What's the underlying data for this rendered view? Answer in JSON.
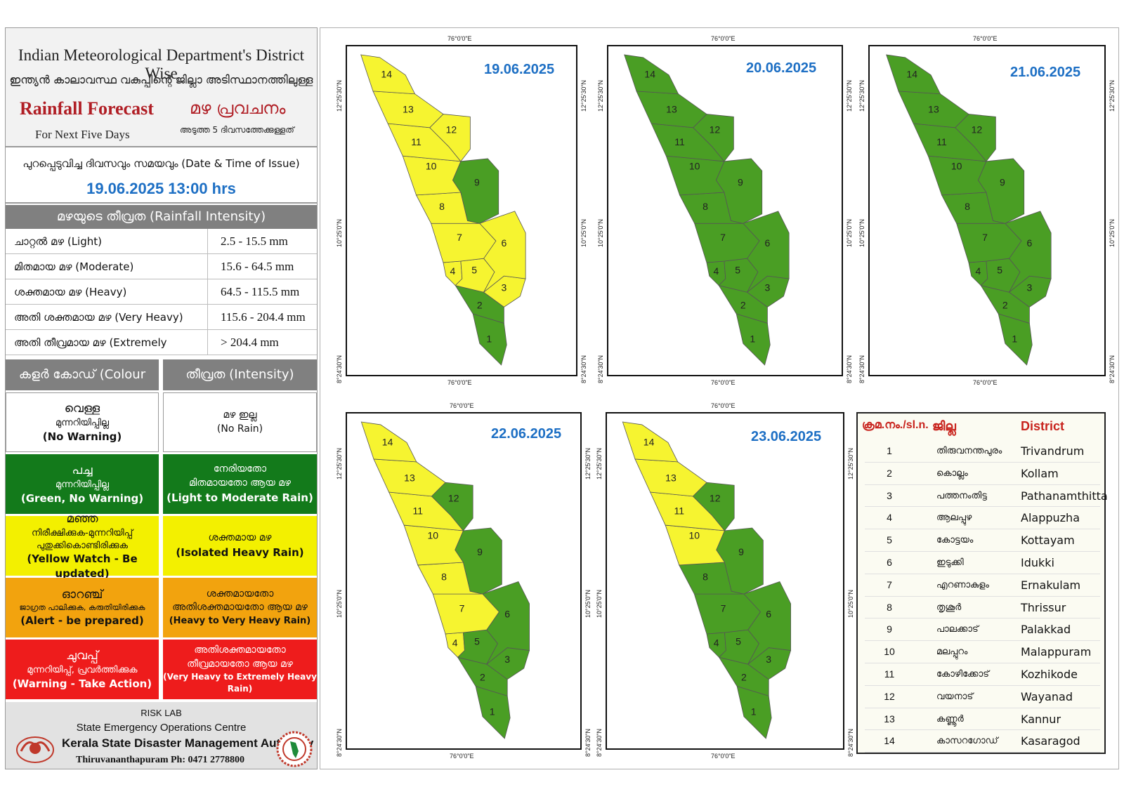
{
  "header": {
    "title_en": "Indian Meteorological Department's District Wise",
    "title_ml": "ഇന്ത്യൻ കാലാവസ്ഥ വകുപ്പിന്റെ ജില്ലാ അടിസ്ഥാനത്തിലുള്ള",
    "forecast_en": "Rainfall Forecast",
    "forecast_ml": "മഴ പ്രവചനം",
    "next_en": "For Next Five Days",
    "next_ml": "അടുത്ത 5 ദിവസത്തേക്കുള്ളത്"
  },
  "issue": {
    "label": "പുറപ്പെടുവിച്ച ദിവസവും സമയവും (Date & Time of Issue)",
    "datetime": "19.06.2025 13:00 hrs"
  },
  "intensity": {
    "header": "മഴയുടെ തീവ്രത (Rainfall Intensity)",
    "rows": [
      {
        "label": "ചാറ്റൽ മഴ (Light)",
        "range": "2.5 - 15.5 mm"
      },
      {
        "label": "മിതമായ മഴ (Moderate)",
        "range": "15.6 - 64.5 mm"
      },
      {
        "label": "ശക്തമായ മഴ (Heavy)",
        "range": "64.5 - 115.5 mm"
      },
      {
        "label": "അതി ശക്തമായ മഴ (Very Heavy)",
        "range": "115.6 - 204.4 mm"
      },
      {
        "label": "അതി തീവ്രമായ മഴ (Extremely Heavy)",
        "range": "> 204.4 mm"
      }
    ]
  },
  "colour_code": {
    "header_code": "കളർ കോഡ് (Colour Code)",
    "header_intensity": "തീവ്രത (Intensity)",
    "rows": [
      {
        "c1": "വെള്ള",
        "c2": "മുന്നറിയിപ്പില്ല",
        "c3": "(No Warning)",
        "i1": "മഴ ഇല്ല",
        "i2": "(No Rain)",
        "color": "#ffffff"
      },
      {
        "c1": "പച്ച",
        "c2": "മുന്നറിയിപ്പില്ല",
        "c3": "(Green, No Warning)",
        "i1": "നേരിയതോ",
        "i2": "മിതമായതോ ആയ മഴ",
        "i3": "(Light to Moderate Rain)",
        "color": "#137a1b"
      },
      {
        "c1": "മഞ്ഞ",
        "c2": "നിരീക്ഷിക്കുക-മുന്നറിയിപ്പ്",
        "c3": "പുതുക്കികൊണ്ടിരിക്കുക",
        "c4": "(Yellow Watch - Be updated)",
        "i1": "ശക്തമായ മഴ",
        "i2": "(Isolated Heavy Rain)",
        "color": "#f3f000"
      },
      {
        "c1": "ഓറഞ്ച്",
        "c2": "ജാഗ്രത പാലിക്കുക, കരുതിയിരിക്കുക",
        "c3": "(Alert - be prepared)",
        "i1": "ശക്തമായതോ",
        "i2": "അതിശക്തമായതോ ആയ മഴ",
        "i3": "(Heavy to Very Heavy Rain)",
        "color": "#f2a30e"
      },
      {
        "c1": "ചുവപ്പ്",
        "c2": "മുന്നറിയിപ്പ്, പ്രവർത്തിക്കുക",
        "c3": "(Warning - Take Action)",
        "i1": "അതിശക്തമായതോ",
        "i2": "തീവ്രമായതോ ആയ മഴ",
        "i3": "(Very Heavy to Extremely Heavy Rain)",
        "color": "#ee1c1c"
      }
    ]
  },
  "footer": {
    "risk": "RISK LAB",
    "seoc": "State Emergency Operations Centre",
    "ksdma": "Kerala State Disaster Management Authority",
    "phone": "Thiruvananthapuram Ph: 0471 2778800"
  },
  "coords": {
    "top": "76°0'0\"E",
    "lat1": "12°25'30\"N",
    "lat2": "10°25'0\"N",
    "lat3": "8°24'30\"N"
  },
  "colors": {
    "green": "#4a9e24",
    "yellow": "#f6f430",
    "date_blue": "#1d6fc4"
  },
  "maps": [
    {
      "date": "19.06.2025",
      "colors": [
        "green",
        "green",
        "yellow",
        "yellow",
        "yellow",
        "yellow",
        "yellow",
        "yellow",
        "green",
        "yellow",
        "yellow",
        "yellow",
        "yellow",
        "yellow"
      ]
    },
    {
      "date": "20.06.2025",
      "colors": [
        "green",
        "green",
        "green",
        "green",
        "green",
        "green",
        "green",
        "green",
        "green",
        "green",
        "green",
        "green",
        "green",
        "green"
      ]
    },
    {
      "date": "21.06.2025",
      "colors": [
        "green",
        "green",
        "green",
        "green",
        "green",
        "green",
        "green",
        "green",
        "green",
        "green",
        "green",
        "green",
        "green",
        "green"
      ]
    },
    {
      "date": "22.06.2025",
      "colors": [
        "green",
        "green",
        "green",
        "yellow",
        "green",
        "green",
        "yellow",
        "yellow",
        "green",
        "yellow",
        "yellow",
        "green",
        "yellow",
        "yellow"
      ]
    },
    {
      "date": "23.06.2025",
      "colors": [
        "green",
        "green",
        "green",
        "green",
        "green",
        "green",
        "green",
        "green",
        "green",
        "yellow",
        "yellow",
        "green",
        "yellow",
        "yellow"
      ]
    }
  ],
  "districts": {
    "h_sl": "ക്രമ.നം./sl.n.",
    "h_ml": "ജില്ല",
    "h_en": "District",
    "rows": [
      {
        "n": "1",
        "ml": "തിരുവനന്തപുരം",
        "en": "Trivandrum"
      },
      {
        "n": "2",
        "ml": "കൊല്ലം",
        "en": "Kollam"
      },
      {
        "n": "3",
        "ml": "പത്തനംതിട്ട",
        "en": "Pathanamthitta"
      },
      {
        "n": "4",
        "ml": "ആലപ്പുഴ",
        "en": "Alappuzha"
      },
      {
        "n": "5",
        "ml": "കോട്ടയം",
        "en": "Kottayam"
      },
      {
        "n": "6",
        "ml": "ഇടുക്കി",
        "en": "Idukki"
      },
      {
        "n": "7",
        "ml": "എറണാകുളം",
        "en": "Ernakulam"
      },
      {
        "n": "8",
        "ml": "തൃശൂർ",
        "en": "Thrissur"
      },
      {
        "n": "9",
        "ml": "പാലക്കാട്",
        "en": "Palakkad"
      },
      {
        "n": "10",
        "ml": "മലപ്പുറം",
        "en": "Malappuram"
      },
      {
        "n": "11",
        "ml": "കോഴിക്കോട്",
        "en": "Kozhikode"
      },
      {
        "n": "12",
        "ml": "വയനാട്",
        "en": "Wayanad"
      },
      {
        "n": "13",
        "ml": "കണ്ണൂർ",
        "en": "Kannur"
      },
      {
        "n": "14",
        "ml": "കാസറഗോഡ്",
        "en": "Kasaragod"
      }
    ]
  }
}
